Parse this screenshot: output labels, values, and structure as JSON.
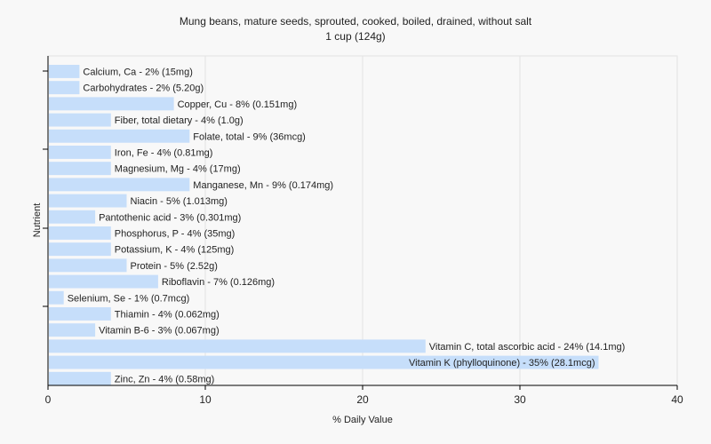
{
  "chart_data": {
    "type": "bar",
    "orientation": "horizontal",
    "title": "Mung beans, mature seeds, sprouted, cooked, boiled, drained, without salt",
    "subtitle": "1 cup (124g)",
    "xlabel": "% Daily Value",
    "ylabel": "Nutrient",
    "xlim": [
      0,
      40
    ],
    "xticks": [
      0,
      10,
      20,
      30,
      40
    ],
    "grid": true,
    "bar_color": "#c6defa",
    "categories": [
      "Calcium, Ca",
      "Carbohydrates",
      "Copper, Cu",
      "Fiber, total dietary",
      "Folate, total",
      "Iron, Fe",
      "Magnesium, Mg",
      "Manganese, Mn",
      "Niacin",
      "Pantothenic acid",
      "Phosphorus, P",
      "Potassium, K",
      "Protein",
      "Riboflavin",
      "Selenium, Se",
      "Thiamin",
      "Vitamin B-6",
      "Vitamin C, total ascorbic acid",
      "Vitamin K (phylloquinone)",
      "Zinc, Zn"
    ],
    "values": [
      2,
      2,
      8,
      4,
      9,
      4,
      4,
      9,
      5,
      3,
      4,
      4,
      5,
      7,
      1,
      4,
      3,
      24,
      35,
      4
    ],
    "labels": [
      "Calcium, Ca - 2% (15mg)",
      "Carbohydrates - 2% (5.20g)",
      "Copper, Cu - 8% (0.151mg)",
      "Fiber, total dietary - 4% (1.0g)",
      "Folate, total - 9% (36mcg)",
      "Iron, Fe - 4% (0.81mg)",
      "Magnesium, Mg - 4% (17mg)",
      "Manganese, Mn - 9% (0.174mg)",
      "Niacin - 5% (1.013mg)",
      "Pantothenic acid - 3% (0.301mg)",
      "Phosphorus, P - 4% (35mg)",
      "Potassium, K - 4% (125mg)",
      "Protein - 5% (2.52g)",
      "Riboflavin - 7% (0.126mg)",
      "Selenium, Se - 1% (0.7mcg)",
      "Thiamin - 4% (0.062mg)",
      "Vitamin B-6 - 3% (0.067mg)",
      "Vitamin C, total ascorbic acid - 24% (14.1mg)",
      "Vitamin K (phylloquinone) - 35% (28.1mcg)",
      "Zinc, Zn - 4% (0.58mg)"
    ]
  }
}
